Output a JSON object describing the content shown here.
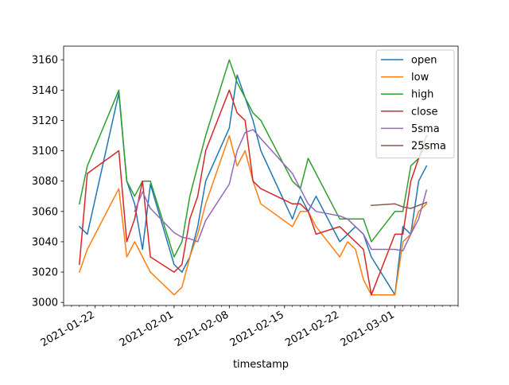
{
  "chart_data": {
    "type": "line",
    "xlabel": "timestamp",
    "ylabel": "",
    "title": "",
    "xlim": [
      "2021-01-18",
      "2021-03-09"
    ],
    "ylim": [
      2998,
      3169
    ],
    "x_ticks": [
      "2021-01-22",
      "2021-02-01",
      "2021-02-08",
      "2021-02-15",
      "2021-02-22",
      "2021-03-01"
    ],
    "y_ticks": [
      3000,
      3020,
      3040,
      3060,
      3080,
      3100,
      3120,
      3140,
      3160
    ],
    "grid": false,
    "legend_position": "top-right",
    "x": [
      "2021-01-20",
      "2021-01-21",
      "2021-01-25",
      "2021-01-26",
      "2021-01-27",
      "2021-01-28",
      "2021-01-29",
      "2021-02-01",
      "2021-02-02",
      "2021-02-03",
      "2021-02-04",
      "2021-02-05",
      "2021-02-08",
      "2021-02-09",
      "2021-02-10",
      "2021-02-11",
      "2021-02-12",
      "2021-02-16",
      "2021-02-17",
      "2021-02-18",
      "2021-02-19",
      "2021-02-22",
      "2021-02-23",
      "2021-02-24",
      "2021-02-25",
      "2021-02-26",
      "2021-03-01",
      "2021-03-02",
      "2021-03-03",
      "2021-03-04",
      "2021-03-05"
    ],
    "series": [
      {
        "name": "open",
        "color": "#1f77b4",
        "values": [
          3050,
          3045,
          3138,
          3080,
          3065,
          3035,
          3078,
          3025,
          3020,
          3030,
          3050,
          3080,
          3115,
          3150,
          3135,
          3120,
          3100,
          3055,
          3070,
          3060,
          3070,
          3040,
          3045,
          3050,
          3045,
          3030,
          3005,
          3050,
          3045,
          3080,
          3090
        ]
      },
      {
        "name": "low",
        "color": "#ff7f0e",
        "values": [
          3020,
          3035,
          3075,
          3030,
          3040,
          3030,
          3020,
          3005,
          3010,
          3030,
          3045,
          3065,
          3110,
          3090,
          3100,
          3080,
          3065,
          3050,
          3060,
          3060,
          3050,
          3030,
          3040,
          3035,
          3015,
          3005,
          3005,
          3040,
          3045,
          3060,
          3065
        ]
      },
      {
        "name": "high",
        "color": "#2ca02c",
        "values": [
          3065,
          3090,
          3140,
          3080,
          3070,
          3080,
          3080,
          3030,
          3040,
          3070,
          3090,
          3110,
          3160,
          3145,
          3135,
          3125,
          3120,
          3080,
          3075,
          3095,
          3085,
          3055,
          3055,
          3055,
          3055,
          3040,
          3060,
          3060,
          3090,
          3095,
          3105
        ]
      },
      {
        "name": "close",
        "color": "#d62728",
        "values": [
          3025,
          3085,
          3100,
          3040,
          3055,
          3080,
          3030,
          3020,
          3025,
          3055,
          3070,
          3100,
          3140,
          3125,
          3120,
          3080,
          3075,
          3065,
          3065,
          3060,
          3045,
          3050,
          3045,
          3040,
          3035,
          3005,
          3045,
          3045,
          3080,
          3095,
          3110
        ]
      },
      {
        "name": "5sma",
        "color": "#9467bd",
        "values": [
          null,
          null,
          null,
          null,
          3060,
          3073,
          3062,
          3046,
          3043,
          3042,
          3040,
          3054,
          3078,
          3100,
          3112,
          3114,
          3108,
          3085,
          3075,
          3065,
          3060,
          3057,
          3055,
          3050,
          3045,
          3035,
          3035,
          3034,
          3045,
          3055,
          3074
        ]
      },
      {
        "name": "25sma",
        "color": "#8c564b",
        "values": [
          null,
          null,
          null,
          null,
          null,
          null,
          null,
          null,
          null,
          null,
          null,
          null,
          null,
          null,
          null,
          null,
          null,
          null,
          null,
          null,
          null,
          null,
          null,
          null,
          null,
          3064,
          3065,
          3063,
          3062,
          3064,
          3066
        ]
      }
    ]
  }
}
